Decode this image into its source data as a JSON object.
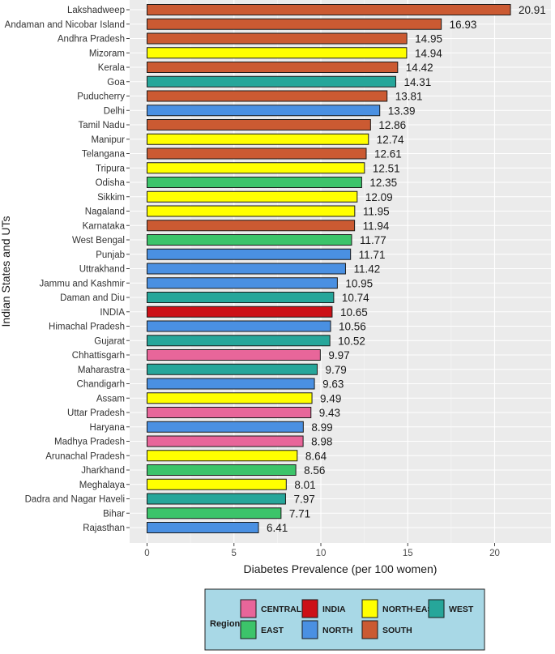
{
  "chart_data": {
    "type": "bar",
    "orientation": "horizontal",
    "title": "",
    "xlabel": "Diabetes Prevalence (per 100 women)",
    "ylabel": "Indian States and UTs",
    "xlim": [
      0,
      22
    ],
    "xticks": [
      0,
      5,
      10,
      15,
      20
    ],
    "grid": true,
    "legend_position": "bottom",
    "legend_title": "Region",
    "regions": [
      {
        "key": "CENTRAL",
        "label": "CENTRAL",
        "color": "#e8669a"
      },
      {
        "key": "EAST",
        "label": "EAST",
        "color": "#3cc46a"
      },
      {
        "key": "INDIA",
        "label": "INDIA",
        "color": "#cc1017"
      },
      {
        "key": "NORTH",
        "label": "NORTH",
        "color": "#4a90e2"
      },
      {
        "key": "NORTH-EAST",
        "label": "NORTH-EAST",
        "color": "#ffff00"
      },
      {
        "key": "SOUTH",
        "label": "SOUTH",
        "color": "#cb5a32"
      },
      {
        "key": "WEST",
        "label": "WEST",
        "color": "#26a69a"
      }
    ],
    "bars": [
      {
        "label": "Lakshadweep",
        "value": 20.91,
        "value_label": "20.91",
        "region": "SOUTH"
      },
      {
        "label": "Andaman and Nicobar Island",
        "value": 16.93,
        "value_label": "16.93",
        "region": "SOUTH"
      },
      {
        "label": "Andhra Pradesh",
        "value": 14.95,
        "value_label": "14.95",
        "region": "SOUTH"
      },
      {
        "label": "Mizoram",
        "value": 14.94,
        "value_label": "14.94",
        "region": "NORTH-EAST"
      },
      {
        "label": "Kerala",
        "value": 14.42,
        "value_label": "14.42",
        "region": "SOUTH"
      },
      {
        "label": "Goa",
        "value": 14.31,
        "value_label": "14.31",
        "region": "WEST"
      },
      {
        "label": "Puducherry",
        "value": 13.81,
        "value_label": "13.81",
        "region": "SOUTH"
      },
      {
        "label": "Delhi",
        "value": 13.39,
        "value_label": "13.39",
        "region": "NORTH"
      },
      {
        "label": "Tamil Nadu",
        "value": 12.86,
        "value_label": "12.86",
        "region": "SOUTH"
      },
      {
        "label": "Manipur",
        "value": 12.74,
        "value_label": "12.74",
        "region": "NORTH-EAST"
      },
      {
        "label": "Telangana",
        "value": 12.61,
        "value_label": "12.61",
        "region": "SOUTH"
      },
      {
        "label": "Tripura",
        "value": 12.51,
        "value_label": "12.51",
        "region": "NORTH-EAST"
      },
      {
        "label": "Odisha",
        "value": 12.35,
        "value_label": "12.35",
        "region": "EAST"
      },
      {
        "label": "Sikkim",
        "value": 12.09,
        "value_label": "12.09",
        "region": "NORTH-EAST"
      },
      {
        "label": "Nagaland",
        "value": 11.95,
        "value_label": "11.95",
        "region": "NORTH-EAST"
      },
      {
        "label": "Karnataka",
        "value": 11.94,
        "value_label": "11.94",
        "region": "SOUTH"
      },
      {
        "label": "West Bengal",
        "value": 11.77,
        "value_label": "11.77",
        "region": "EAST"
      },
      {
        "label": "Punjab",
        "value": 11.71,
        "value_label": "11.71",
        "region": "NORTH"
      },
      {
        "label": "Uttrakhand",
        "value": 11.42,
        "value_label": "11.42",
        "region": "NORTH"
      },
      {
        "label": "Jammu and Kashmir",
        "value": 10.95,
        "value_label": "10.95",
        "region": "NORTH"
      },
      {
        "label": "Daman and Diu",
        "value": 10.74,
        "value_label": "10.74",
        "region": "WEST"
      },
      {
        "label": "INDIA",
        "value": 10.65,
        "value_label": "10.65",
        "region": "INDIA"
      },
      {
        "label": "Himachal Pradesh",
        "value": 10.56,
        "value_label": "10.56",
        "region": "NORTH"
      },
      {
        "label": "Gujarat",
        "value": 10.52,
        "value_label": "10.52",
        "region": "WEST"
      },
      {
        "label": "Chhattisgarh",
        "value": 9.97,
        "value_label": "9.97",
        "region": "CENTRAL"
      },
      {
        "label": "Maharastra",
        "value": 9.79,
        "value_label": "9.79",
        "region": "WEST"
      },
      {
        "label": "Chandigarh",
        "value": 9.63,
        "value_label": "9.63",
        "region": "NORTH"
      },
      {
        "label": "Assam",
        "value": 9.49,
        "value_label": "9.49",
        "region": "NORTH-EAST"
      },
      {
        "label": "Uttar Pradesh",
        "value": 9.43,
        "value_label": "9.43",
        "region": "CENTRAL"
      },
      {
        "label": "Haryana",
        "value": 8.99,
        "value_label": "8.99",
        "region": "NORTH"
      },
      {
        "label": "Madhya Pradesh",
        "value": 8.98,
        "value_label": "8.98",
        "region": "CENTRAL"
      },
      {
        "label": "Arunachal Pradesh",
        "value": 8.64,
        "value_label": "8.64",
        "region": "NORTH-EAST"
      },
      {
        "label": "Jharkhand",
        "value": 8.56,
        "value_label": "8.56",
        "region": "EAST"
      },
      {
        "label": "Meghalaya",
        "value": 8.01,
        "value_label": "8.01",
        "region": "NORTH-EAST"
      },
      {
        "label": "Dadra and Nagar Haveli",
        "value": 7.97,
        "value_label": "7.97",
        "region": "WEST"
      },
      {
        "label": "Bihar",
        "value": 7.71,
        "value_label": "7.71",
        "region": "EAST"
      },
      {
        "label": "Rajasthan",
        "value": 6.41,
        "value_label": "6.41",
        "region": "NORTH"
      }
    ]
  }
}
